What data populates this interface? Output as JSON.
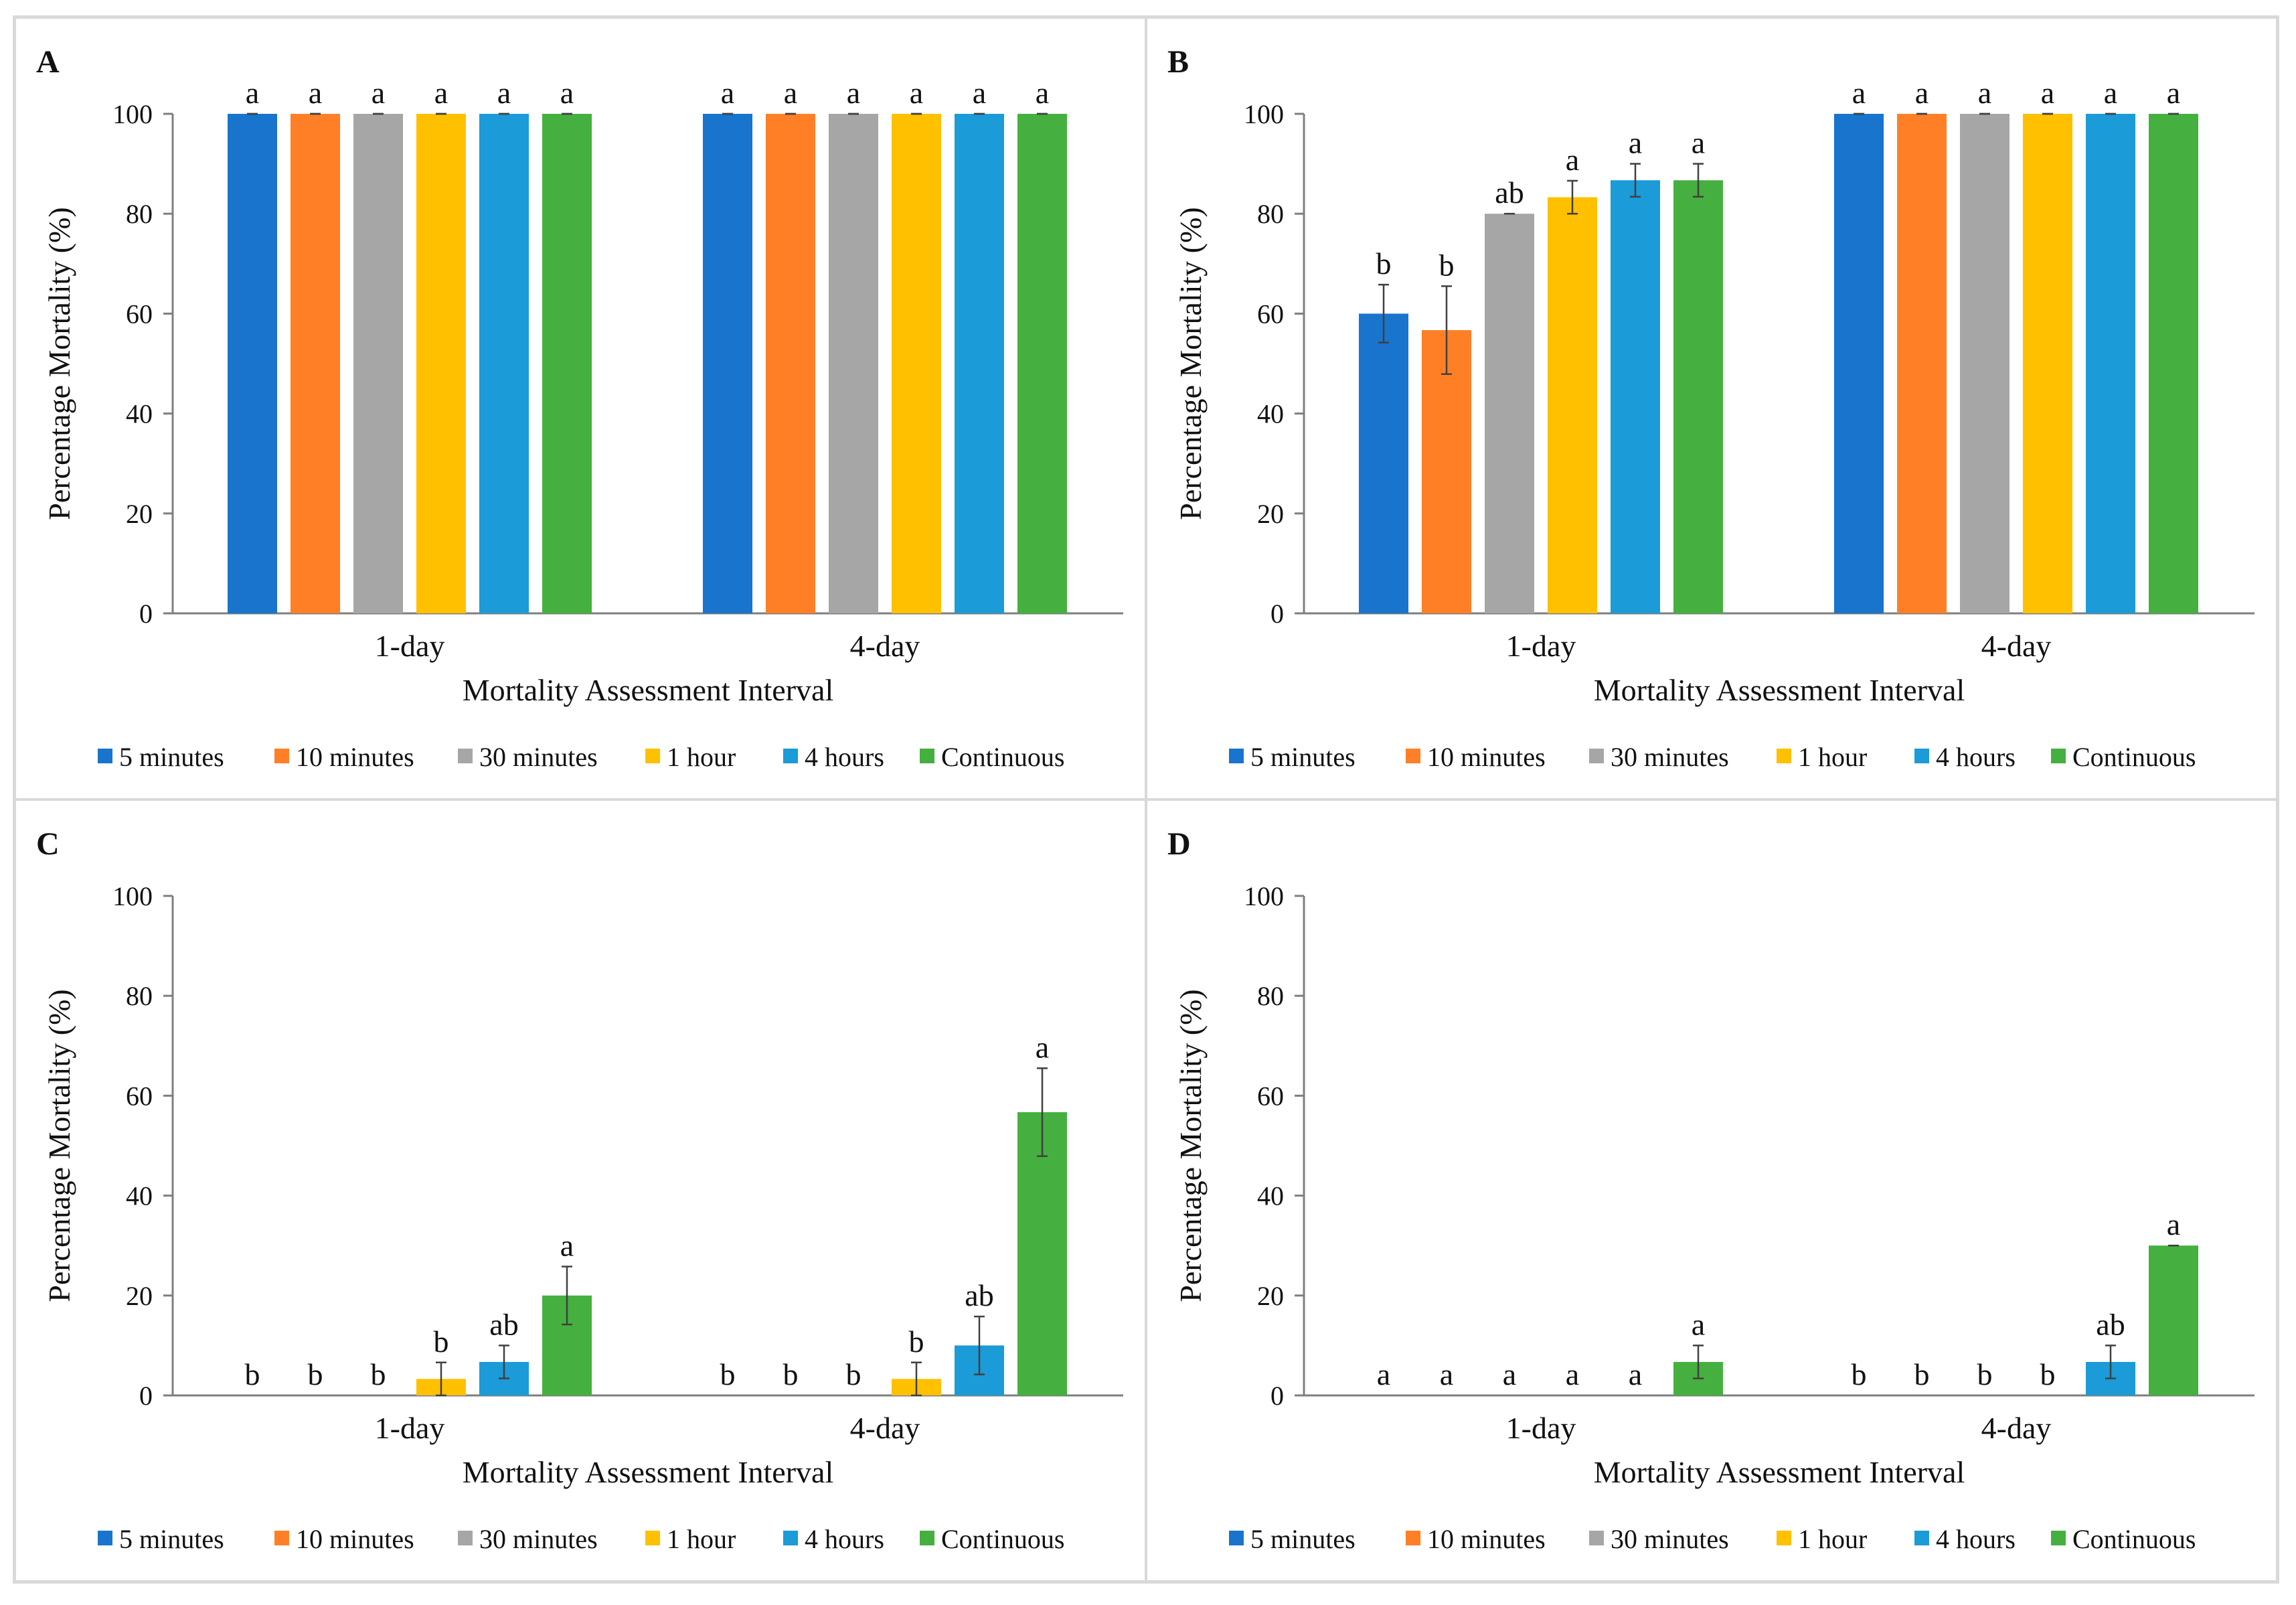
{
  "figure": {
    "colors": {
      "5 minutes": "#1874CD",
      "10 minutes": "#FF7F27",
      "30 minutes": "#A6A6A6",
      "1 hour": "#FFC000",
      "4 hours": "#1B9BD7",
      "Continuous": "#45B03F",
      "axis": "#7f7f7f",
      "error_bar": "#404040",
      "panel_border": "#d9d9d9"
    }
  },
  "chart_data": [
    {
      "panel": "A",
      "type": "bar",
      "title": "",
      "xlabel": "Mortality Assessment Interval",
      "ylabel": "Percentage Mortality (%)",
      "ylim": [
        0,
        100
      ],
      "yticks": [
        "0",
        "20",
        "40",
        "60",
        "80",
        "100"
      ],
      "categories": [
        "1-day",
        "4-day"
      ],
      "legend_position": "bottom",
      "series": [
        {
          "name": "5 minutes",
          "values": [
            100,
            100
          ],
          "errors": [
            0,
            0
          ],
          "letters": [
            "a",
            "a"
          ]
        },
        {
          "name": "10 minutes",
          "values": [
            100,
            100
          ],
          "errors": [
            0,
            0
          ],
          "letters": [
            "a",
            "a"
          ]
        },
        {
          "name": "30 minutes",
          "values": [
            100,
            100
          ],
          "errors": [
            0,
            0
          ],
          "letters": [
            "a",
            "a"
          ]
        },
        {
          "name": "1 hour",
          "values": [
            100,
            100
          ],
          "errors": [
            0,
            0
          ],
          "letters": [
            "a",
            "a"
          ]
        },
        {
          "name": "4 hours",
          "values": [
            100,
            100
          ],
          "errors": [
            0,
            0
          ],
          "letters": [
            "a",
            "a"
          ]
        },
        {
          "name": "Continuous",
          "values": [
            100,
            100
          ],
          "errors": [
            0,
            0
          ],
          "letters": [
            "a",
            "a"
          ]
        }
      ]
    },
    {
      "panel": "B",
      "type": "bar",
      "title": "",
      "xlabel": "Mortality Assessment Interval",
      "ylabel": "Percentage Mortality (%)",
      "ylim": [
        0,
        100
      ],
      "yticks": [
        "0",
        "20",
        "40",
        "60",
        "80",
        "100"
      ],
      "categories": [
        "1-day",
        "4-day"
      ],
      "legend_position": "bottom",
      "series": [
        {
          "name": "5 minutes",
          "values": [
            60,
            100
          ],
          "errors": [
            5.8,
            0
          ],
          "letters": [
            "b",
            "a"
          ]
        },
        {
          "name": "10 minutes",
          "values": [
            56.7,
            100
          ],
          "errors": [
            8.8,
            0
          ],
          "letters": [
            "b",
            "a"
          ]
        },
        {
          "name": "30 minutes",
          "values": [
            80,
            100
          ],
          "errors": [
            0,
            0
          ],
          "letters": [
            "ab",
            "a"
          ]
        },
        {
          "name": "1 hour",
          "values": [
            83.3,
            100
          ],
          "errors": [
            3.3,
            0
          ],
          "letters": [
            "a",
            "a"
          ]
        },
        {
          "name": "4 hours",
          "values": [
            86.7,
            100
          ],
          "errors": [
            3.3,
            0
          ],
          "letters": [
            "a",
            "a"
          ]
        },
        {
          "name": "Continuous",
          "values": [
            86.7,
            100
          ],
          "errors": [
            3.3,
            0
          ],
          "letters": [
            "a",
            "a"
          ]
        }
      ]
    },
    {
      "panel": "C",
      "type": "bar",
      "title": "",
      "xlabel": "Mortality Assessment Interval",
      "ylabel": "Percentage Mortality (%)",
      "ylim": [
        0,
        100
      ],
      "yticks": [
        "0",
        "20",
        "40",
        "60",
        "80",
        "100"
      ],
      "categories": [
        "1-day",
        "4-day"
      ],
      "legend_position": "bottom",
      "series": [
        {
          "name": "5 minutes",
          "values": [
            0,
            0
          ],
          "errors": [
            0,
            0
          ],
          "letters": [
            "b",
            "b"
          ]
        },
        {
          "name": "10 minutes",
          "values": [
            0,
            0
          ],
          "errors": [
            0,
            0
          ],
          "letters": [
            "b",
            "b"
          ]
        },
        {
          "name": "30 minutes",
          "values": [
            0,
            0
          ],
          "errors": [
            0,
            0
          ],
          "letters": [
            "b",
            "b"
          ]
        },
        {
          "name": "1 hour",
          "values": [
            3.3,
            3.3
          ],
          "errors": [
            3.3,
            3.3
          ],
          "letters": [
            "b",
            "b"
          ]
        },
        {
          "name": "4 hours",
          "values": [
            6.7,
            10
          ],
          "errors": [
            3.3,
            5.8
          ],
          "letters": [
            "ab",
            "ab"
          ]
        },
        {
          "name": "Continuous",
          "values": [
            20,
            56.7
          ],
          "errors": [
            5.8,
            8.8
          ],
          "letters": [
            "a",
            "a"
          ]
        }
      ]
    },
    {
      "panel": "D",
      "type": "bar",
      "title": "",
      "xlabel": "Mortality Assessment Interval",
      "ylabel": "Percentage Mortality (%)",
      "ylim": [
        0,
        100
      ],
      "yticks": [
        "0",
        "20",
        "40",
        "60",
        "80",
        "100"
      ],
      "categories": [
        "1-day",
        "4-day"
      ],
      "legend_position": "bottom",
      "series": [
        {
          "name": "5 minutes",
          "values": [
            0,
            0
          ],
          "errors": [
            0,
            0
          ],
          "letters": [
            "a",
            "b"
          ]
        },
        {
          "name": "10 minutes",
          "values": [
            0,
            0
          ],
          "errors": [
            0,
            0
          ],
          "letters": [
            "a",
            "b"
          ]
        },
        {
          "name": "30 minutes",
          "values": [
            0,
            0
          ],
          "errors": [
            0,
            0
          ],
          "letters": [
            "a",
            "b"
          ]
        },
        {
          "name": "1 hour",
          "values": [
            0,
            0
          ],
          "errors": [
            0,
            0
          ],
          "letters": [
            "a",
            "b"
          ]
        },
        {
          "name": "4 hours",
          "values": [
            0,
            6.7
          ],
          "errors": [
            0,
            3.3
          ],
          "letters": [
            "a",
            "ab"
          ]
        },
        {
          "name": "Continuous",
          "values": [
            6.7,
            30
          ],
          "errors": [
            3.3,
            0
          ],
          "letters": [
            "a",
            "a"
          ]
        }
      ]
    }
  ]
}
